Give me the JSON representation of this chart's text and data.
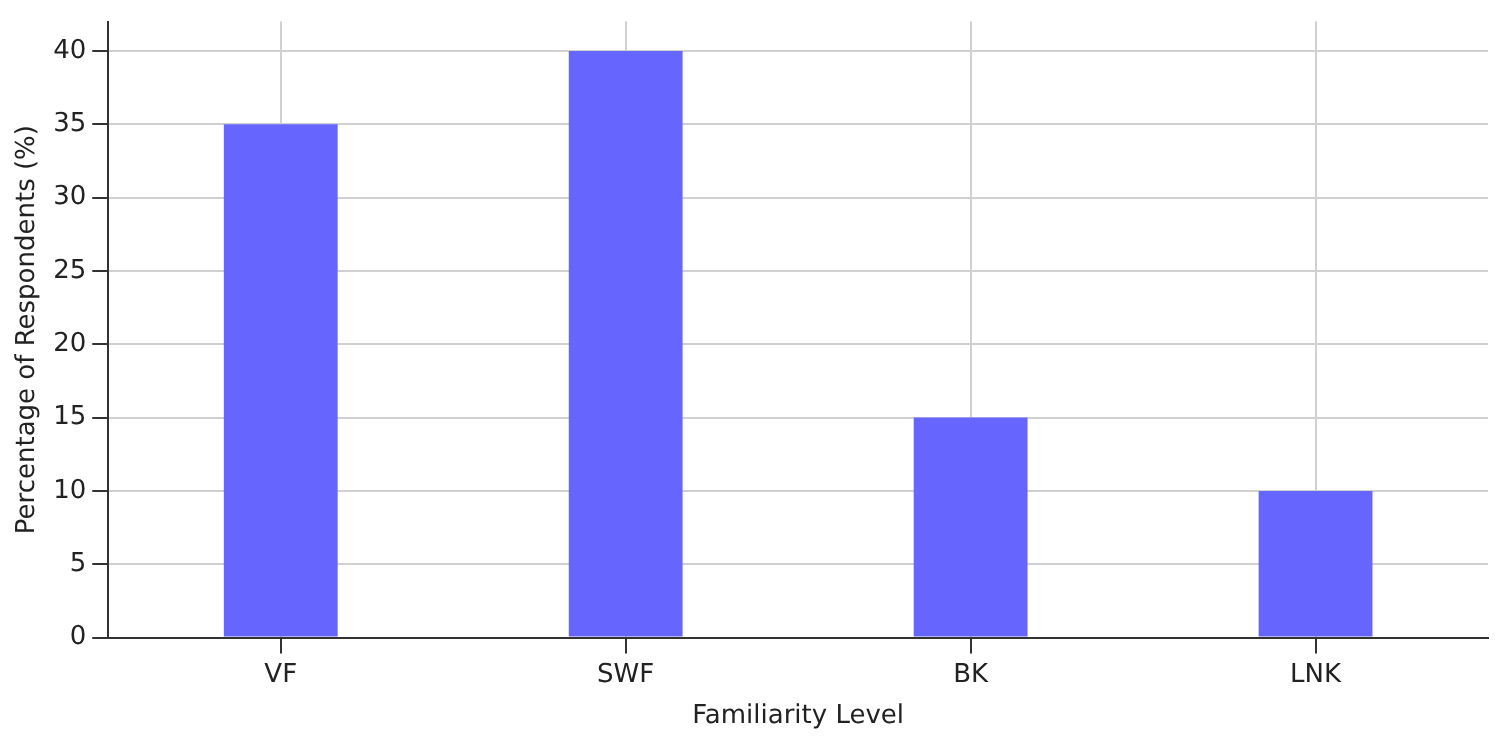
{
  "chart_data": {
    "type": "bar",
    "xlabel": "Familiarity Level",
    "ylabel": "Percentage of Respondents (%)",
    "categories": [
      "VF",
      "SWF",
      "BK",
      "LNK"
    ],
    "values": [
      35,
      40,
      15,
      10
    ],
    "color": "#6666ff",
    "ylim": [
      0,
      42
    ],
    "yticks": [
      0,
      5,
      10,
      15,
      20,
      25,
      30,
      35,
      40
    ],
    "grid": true
  }
}
